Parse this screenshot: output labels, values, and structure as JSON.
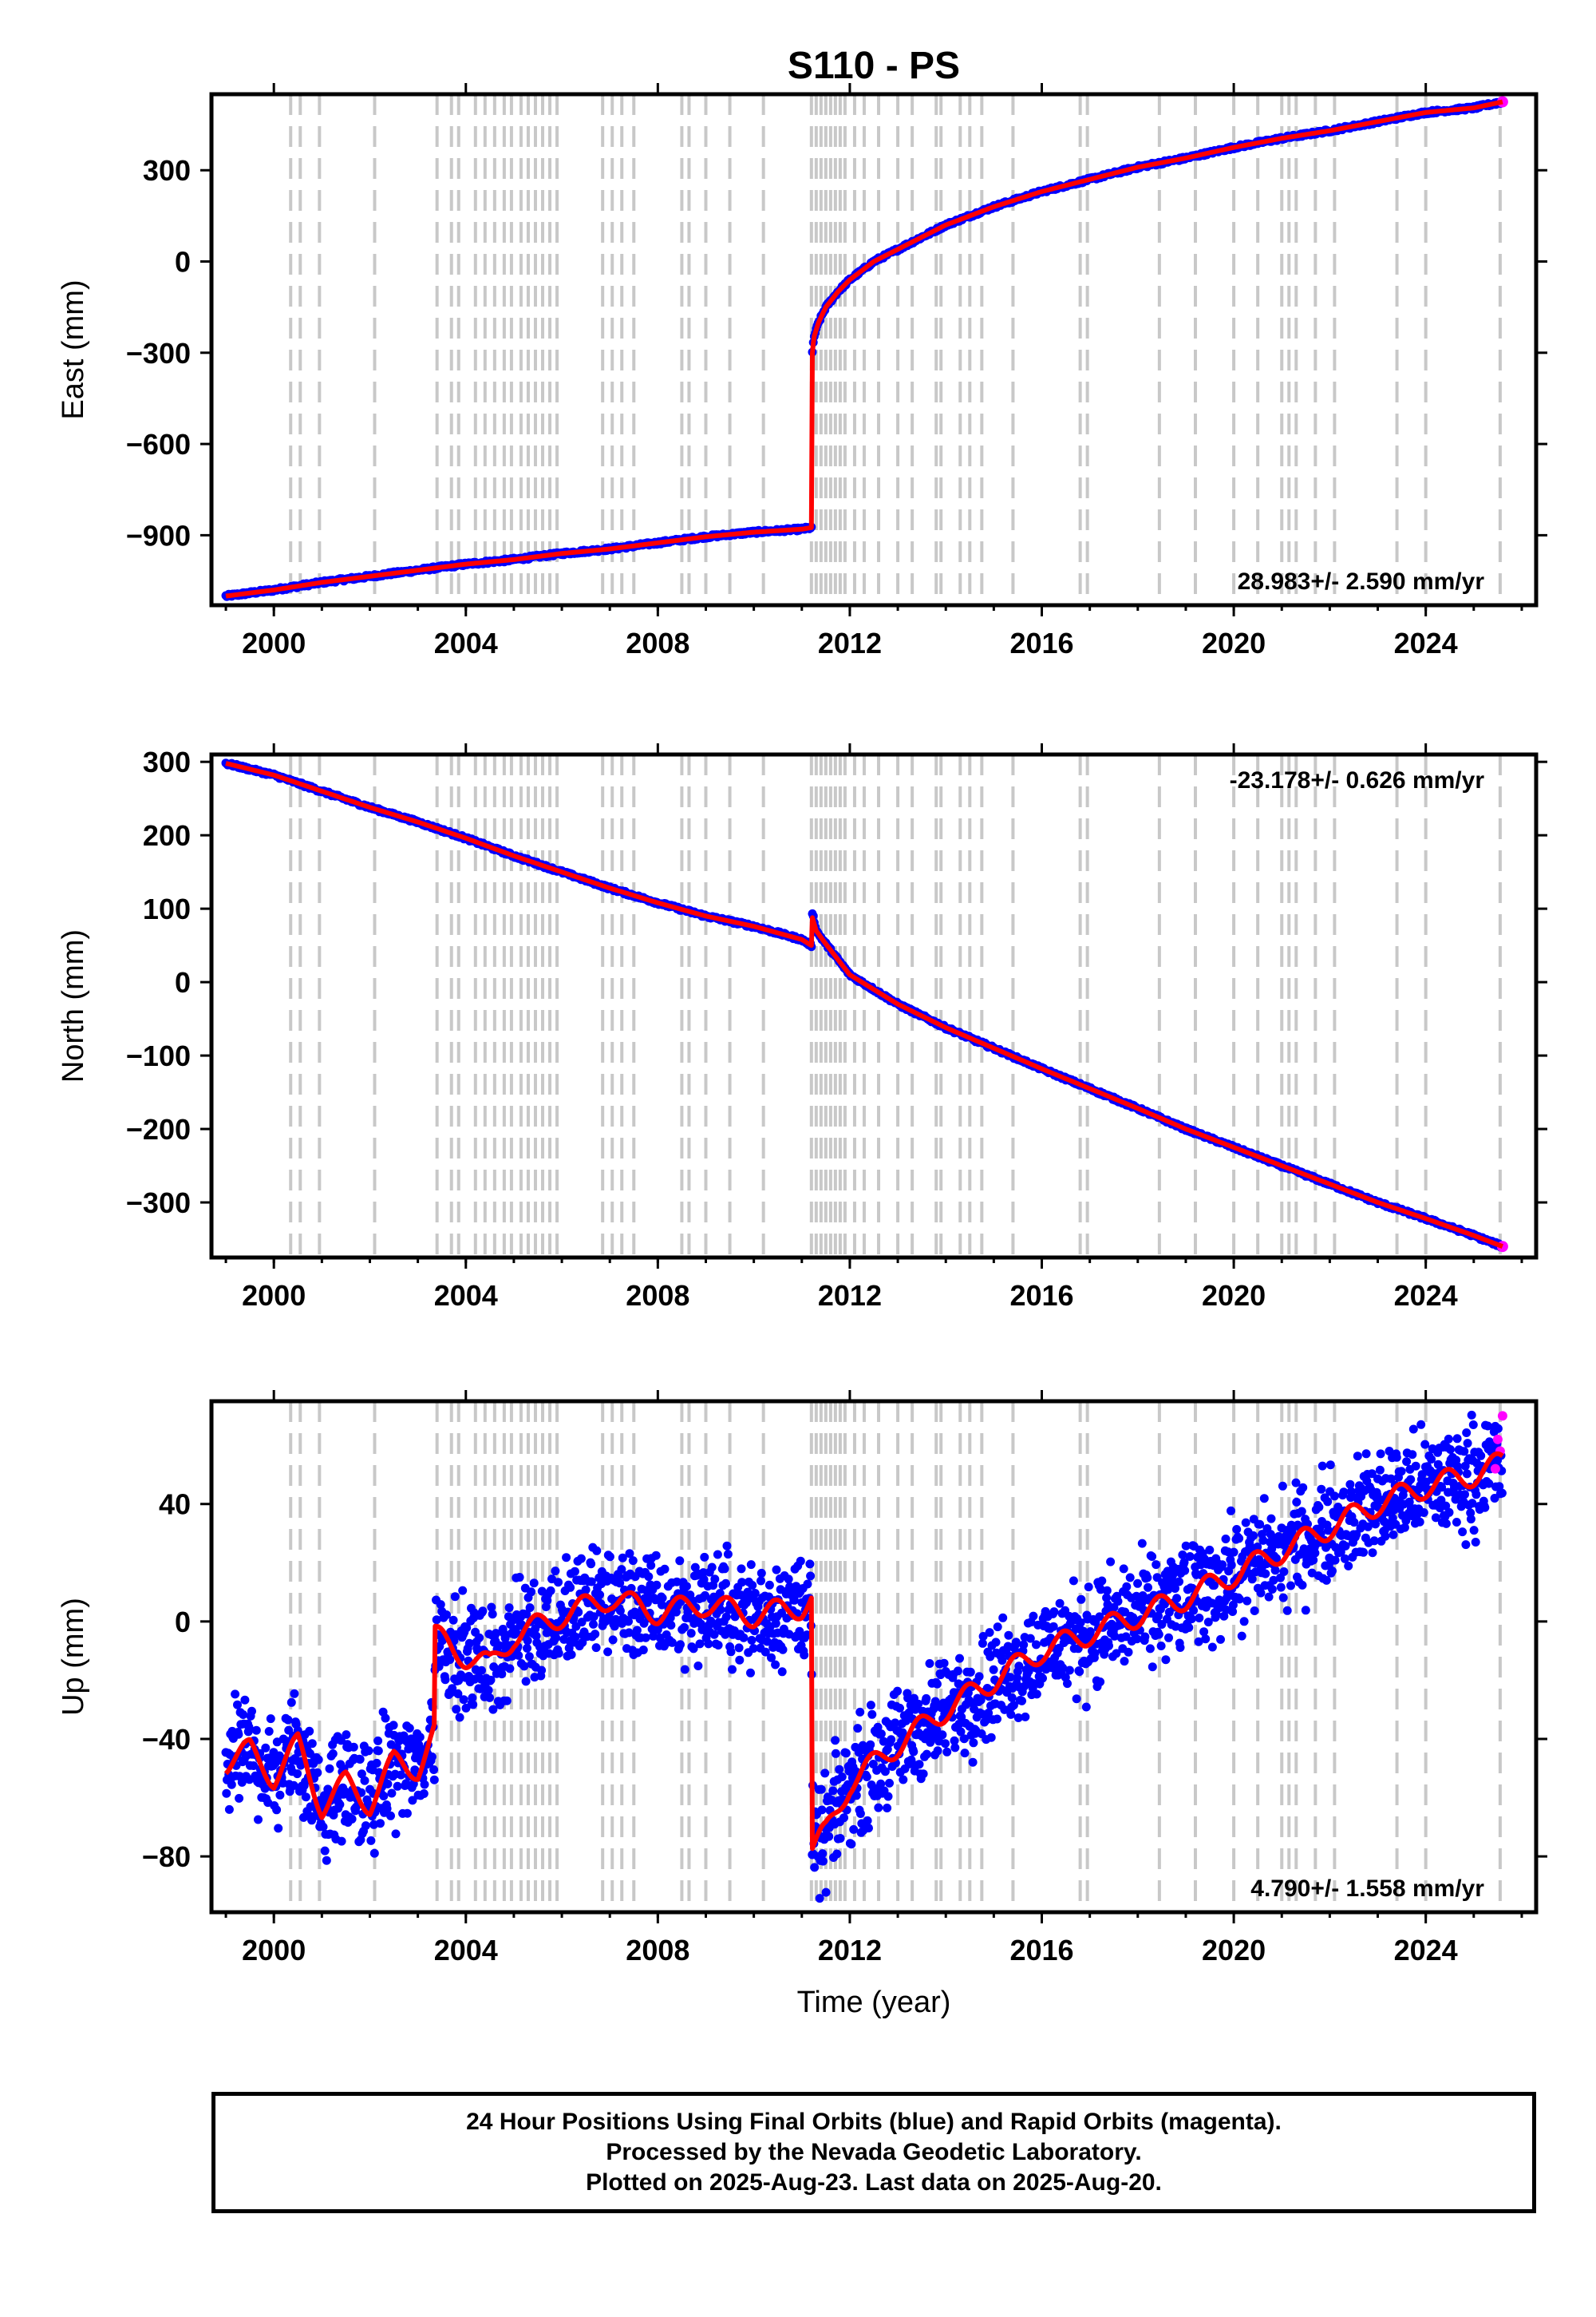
{
  "figure": {
    "title": "S110 - PS",
    "xlabel": "Time (year)",
    "footer": [
      "24 Hour Positions Using Final Orbits (blue) and Rapid Orbits (magenta).",
      "Processed by the Nevada Geodetic Laboratory.",
      "Plotted on 2025-Aug-23. Last data on 2025-Aug-20."
    ],
    "colors": {
      "final": "#0000ff",
      "rapid": "#ff00ff",
      "model": "#ff0000",
      "equipment_lines": "#c8c8c8"
    }
  },
  "chart_data": [
    {
      "type": "scatter",
      "component": "East",
      "ylabel": "East (mm)",
      "rate": "28.983+/- 2.590 mm/yr",
      "rate_position": "bottom-right",
      "xlim": [
        1998.7,
        2026.3
      ],
      "ylim": [
        -1130,
        550
      ],
      "xticks": [
        2000,
        2004,
        2008,
        2012,
        2016,
        2020,
        2024
      ],
      "yticks": [
        300,
        0,
        -300,
        -600,
        -900
      ],
      "ytick_labels": [
        "300",
        "0",
        "−300",
        "−600",
        "−900"
      ],
      "equipment_changes": [
        2000.35,
        2000.55,
        2000.95,
        2002.1,
        2003.4,
        2003.7,
        2003.85,
        2004.2,
        2004.4,
        2004.6,
        2004.8,
        2004.95,
        2005.15,
        2005.3,
        2005.45,
        2005.6,
        2005.75,
        2005.9,
        2006.85,
        2007.05,
        2007.25,
        2007.5,
        2008.5,
        2008.65,
        2009.0,
        2009.5,
        2010.2,
        2011.2,
        2011.3,
        2011.4,
        2011.5,
        2011.6,
        2011.7,
        2011.8,
        2011.9,
        2012.1,
        2012.3,
        2012.6,
        2013.0,
        2013.3,
        2013.8,
        2013.9,
        2014.3,
        2014.5,
        2014.75,
        2015.4,
        2016.8,
        2016.95,
        2018.45,
        2019.2,
        2020.0,
        2020.5,
        2021.0,
        2021.15,
        2021.3,
        2021.7,
        2022.1,
        2023.4,
        2024.0,
        2025.55
      ],
      "series": [
        {
          "name": "East position",
          "x": [
            1999.0,
            2000.0,
            2001.0,
            2002.0,
            2003.0,
            2004.0,
            2005.0,
            2006.0,
            2007.0,
            2008.0,
            2009.0,
            2010.0,
            2011.0,
            2011.2,
            2011.21,
            2011.25,
            2011.35,
            2011.5,
            2011.75,
            2012.0,
            2012.5,
            2013.0,
            2014.0,
            2015.0,
            2016.0,
            2017.0,
            2018.0,
            2019.0,
            2020.0,
            2021.0,
            2022.0,
            2023.0,
            2024.0,
            2025.0,
            2025.6
          ],
          "y": [
            -1100,
            -1080,
            -1055,
            -1035,
            -1015,
            -995,
            -980,
            -960,
            -945,
            -925,
            -905,
            -890,
            -880,
            -875,
            -320,
            -250,
            -200,
            -150,
            -100,
            -60,
            0,
            40,
            120,
            180,
            230,
            270,
            310,
            340,
            375,
            405,
            430,
            460,
            490,
            505,
            525
          ]
        },
        {
          "name": "Model",
          "x": [
            1999.0,
            2000.0,
            2001.0,
            2002.0,
            2003.0,
            2004.0,
            2005.0,
            2006.0,
            2007.0,
            2008.0,
            2009.0,
            2010.0,
            2011.0,
            2011.2,
            2011.21,
            2011.25,
            2011.35,
            2011.5,
            2011.75,
            2012.0,
            2012.5,
            2013.0,
            2014.0,
            2015.0,
            2016.0,
            2017.0,
            2018.0,
            2019.0,
            2020.0,
            2021.0,
            2022.0,
            2023.0,
            2024.0,
            2025.0,
            2025.6
          ],
          "y": [
            -1100,
            -1080,
            -1055,
            -1035,
            -1015,
            -995,
            -980,
            -960,
            -945,
            -925,
            -905,
            -890,
            -880,
            -875,
            -320,
            -250,
            -200,
            -150,
            -100,
            -60,
            0,
            40,
            120,
            180,
            230,
            270,
            310,
            340,
            375,
            405,
            430,
            460,
            490,
            505,
            525
          ]
        }
      ]
    },
    {
      "type": "scatter",
      "component": "North",
      "ylabel": "North (mm)",
      "rate": "-23.178+/- 0.626 mm/yr",
      "rate_position": "top-right",
      "xlim": [
        1998.7,
        2026.3
      ],
      "ylim": [
        -375,
        310
      ],
      "xticks": [
        2000,
        2004,
        2008,
        2012,
        2016,
        2020,
        2024
      ],
      "yticks": [
        300,
        200,
        100,
        0,
        -100,
        -200,
        -300
      ],
      "ytick_labels": [
        "300",
        "200",
        "100",
        "0",
        "−100",
        "−200",
        "−300"
      ],
      "equipment_changes": [
        2000.35,
        2000.55,
        2000.95,
        2002.1,
        2003.4,
        2003.7,
        2003.85,
        2004.2,
        2004.4,
        2004.6,
        2004.8,
        2004.95,
        2005.15,
        2005.3,
        2005.45,
        2005.6,
        2005.75,
        2005.9,
        2006.85,
        2007.05,
        2007.25,
        2007.5,
        2008.5,
        2008.65,
        2009.0,
        2009.5,
        2010.2,
        2011.2,
        2011.3,
        2011.4,
        2011.5,
        2011.6,
        2011.7,
        2011.8,
        2011.9,
        2012.1,
        2012.3,
        2012.6,
        2013.0,
        2013.3,
        2013.8,
        2013.9,
        2014.3,
        2014.5,
        2014.75,
        2015.4,
        2016.8,
        2016.95,
        2018.45,
        2019.2,
        2020.0,
        2020.5,
        2021.0,
        2021.15,
        2021.3,
        2021.7,
        2022.1,
        2023.4,
        2024.0,
        2025.55
      ],
      "series": [
        {
          "name": "North position",
          "x": [
            1999.0,
            2000.0,
            2001.0,
            2002.0,
            2003.0,
            2004.0,
            2005.0,
            2006.0,
            2007.0,
            2008.0,
            2009.0,
            2010.0,
            2011.0,
            2011.2,
            2011.21,
            2011.3,
            2011.5,
            2012.0,
            2013.0,
            2014.0,
            2015.0,
            2016.0,
            2017.0,
            2018.0,
            2019.0,
            2020.0,
            2021.0,
            2022.0,
            2023.0,
            2024.0,
            2025.0,
            2025.6
          ],
          "y": [
            298,
            282,
            260,
            238,
            218,
            196,
            172,
            150,
            128,
            108,
            90,
            76,
            58,
            50,
            98,
            70,
            52,
            10,
            -30,
            -62,
            -90,
            -118,
            -145,
            -172,
            -200,
            -225,
            -250,
            -275,
            -300,
            -322,
            -345,
            -360
          ]
        },
        {
          "name": "Model",
          "x": [
            1999.0,
            2000.0,
            2001.0,
            2002.0,
            2003.0,
            2004.0,
            2005.0,
            2006.0,
            2007.0,
            2008.0,
            2009.0,
            2010.0,
            2011.0,
            2011.2,
            2011.21,
            2011.3,
            2011.5,
            2012.0,
            2013.0,
            2014.0,
            2015.0,
            2016.0,
            2017.0,
            2018.0,
            2019.0,
            2020.0,
            2021.0,
            2022.0,
            2023.0,
            2024.0,
            2025.0,
            2025.6
          ],
          "y": [
            298,
            282,
            260,
            238,
            218,
            196,
            172,
            150,
            128,
            108,
            90,
            76,
            58,
            50,
            90,
            70,
            52,
            10,
            -30,
            -62,
            -90,
            -118,
            -145,
            -172,
            -200,
            -225,
            -250,
            -275,
            -300,
            -322,
            -345,
            -360
          ]
        }
      ]
    },
    {
      "type": "scatter",
      "component": "Up",
      "ylabel": "Up (mm)",
      "rate": "4.790+/- 1.558 mm/yr",
      "rate_position": "bottom-right",
      "xlim": [
        1998.7,
        2026.3
      ],
      "ylim": [
        -99,
        75
      ],
      "xticks": [
        2000,
        2004,
        2008,
        2012,
        2016,
        2020,
        2024
      ],
      "yticks": [
        40,
        0,
        -40,
        -80
      ],
      "ytick_labels": [
        "40",
        "0",
        "−40",
        "−80"
      ],
      "equipment_changes": [
        2000.35,
        2000.55,
        2000.95,
        2002.1,
        2003.4,
        2003.7,
        2003.85,
        2004.2,
        2004.4,
        2004.6,
        2004.8,
        2004.95,
        2005.15,
        2005.3,
        2005.45,
        2005.6,
        2005.75,
        2005.9,
        2006.85,
        2007.05,
        2007.25,
        2007.5,
        2008.5,
        2008.65,
        2009.0,
        2009.5,
        2010.2,
        2011.2,
        2011.3,
        2011.4,
        2011.5,
        2011.6,
        2011.7,
        2011.8,
        2011.9,
        2012.1,
        2012.3,
        2012.6,
        2013.0,
        2013.3,
        2013.8,
        2013.9,
        2014.3,
        2014.5,
        2014.75,
        2015.4,
        2016.8,
        2016.95,
        2018.45,
        2019.2,
        2020.0,
        2020.5,
        2021.0,
        2021.15,
        2021.3,
        2021.7,
        2022.1,
        2023.4,
        2024.0,
        2025.55
      ],
      "series": [
        {
          "name": "Up position",
          "scatter_mm": 9,
          "x": [
            1999.0,
            1999.5,
            2000.0,
            2000.5,
            2001.0,
            2001.5,
            2002.0,
            2002.5,
            2003.0,
            2003.35,
            2003.36,
            2004.0,
            2004.5,
            2005.0,
            2006.0,
            2007.0,
            2008.0,
            2009.0,
            2010.0,
            2011.0,
            2011.2,
            2011.21,
            2011.5,
            2012.0,
            2013.0,
            2014.0,
            2015.0,
            2016.0,
            2017.0,
            2018.0,
            2019.0,
            2020.0,
            2021.0,
            2022.0,
            2023.0,
            2024.0,
            2025.0,
            2025.6
          ],
          "y": [
            -48,
            -44,
            -53,
            -42,
            -63,
            -55,
            -62,
            -48,
            -50,
            -38,
            -5,
            -12,
            -15,
            -5,
            2,
            8,
            3,
            6,
            2,
            5,
            8,
            -78,
            -72,
            -55,
            -42,
            -30,
            -20,
            -10,
            -4,
            2,
            8,
            16,
            24,
            32,
            40,
            46,
            50,
            54
          ]
        },
        {
          "name": "Model",
          "x": [
            1999.0,
            1999.5,
            2000.0,
            2000.5,
            2001.0,
            2001.5,
            2002.0,
            2002.5,
            2003.0,
            2003.35,
            2003.36,
            2004.0,
            2004.5,
            2005.0,
            2006.0,
            2007.0,
            2008.0,
            2009.0,
            2010.0,
            2011.0,
            2011.2,
            2011.21,
            2011.5,
            2012.0,
            2013.0,
            2014.0,
            2015.0,
            2016.0,
            2017.0,
            2018.0,
            2019.0,
            2020.0,
            2021.0,
            2022.0,
            2023.0,
            2024.0,
            2025.0,
            2025.6
          ],
          "y": [
            -48,
            -44,
            -53,
            -42,
            -63,
            -55,
            -62,
            -48,
            -50,
            -38,
            -5,
            -12,
            -15,
            -5,
            2,
            8,
            3,
            6,
            2,
            5,
            8,
            -78,
            -72,
            -55,
            -42,
            -30,
            -20,
            -10,
            -4,
            2,
            8,
            16,
            24,
            32,
            40,
            46,
            50,
            54
          ]
        },
        {
          "name": "Rapid orbits",
          "x": [
            2025.45,
            2025.5,
            2025.55,
            2025.6
          ],
          "y": [
            52,
            62,
            58,
            70
          ]
        }
      ]
    }
  ]
}
